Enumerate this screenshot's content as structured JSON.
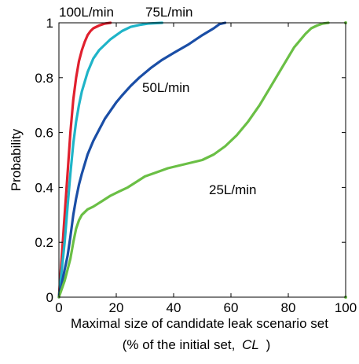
{
  "chart_data": {
    "type": "line",
    "title": "",
    "xlabel_line1": "Maximal size of candidate leak scenario set",
    "xlabel_line2_prefix": "(% of the initial set,",
    "xlabel_line2_symbol": "CL",
    "xlabel_line2_suffix": ")",
    "ylabel": "Probability",
    "xlim": [
      0,
      100
    ],
    "ylim": [
      0,
      1
    ],
    "x_ticks": [
      0,
      20,
      40,
      60,
      80,
      100
    ],
    "y_ticks": [
      0,
      0.2,
      0.4,
      0.6,
      0.8,
      1
    ],
    "x_tick_labels": [
      "0",
      "20",
      "40",
      "60",
      "80",
      "100"
    ],
    "y_tick_labels": [
      "0",
      "0.2",
      "0.4",
      "0.6",
      "0.8",
      "1"
    ],
    "grid": false,
    "legend": "none (series labeled directly on plot)",
    "series": [
      {
        "name": "100L/min",
        "color": "#e0202e",
        "x": [
          0,
          1,
          2,
          3,
          4,
          5,
          6,
          7,
          8,
          9,
          10,
          11,
          12,
          14,
          16,
          18
        ],
        "y": [
          0,
          0.15,
          0.3,
          0.45,
          0.6,
          0.72,
          0.8,
          0.86,
          0.9,
          0.93,
          0.955,
          0.97,
          0.98,
          0.99,
          0.997,
          1.0
        ]
      },
      {
        "name": "75L/min",
        "color": "#1fb4c8",
        "x": [
          0,
          2,
          3,
          4,
          5,
          6,
          7,
          8,
          10,
          12,
          14,
          16,
          18,
          20,
          22,
          25,
          28,
          31,
          36
        ],
        "y": [
          0,
          0.2,
          0.33,
          0.45,
          0.56,
          0.64,
          0.7,
          0.75,
          0.82,
          0.87,
          0.9,
          0.92,
          0.94,
          0.955,
          0.97,
          0.985,
          0.992,
          0.997,
          1.0
        ]
      },
      {
        "name": "50L/min",
        "color": "#1a4ea6",
        "x": [
          0,
          2,
          3,
          4,
          5,
          6,
          7,
          8,
          10,
          12,
          14,
          16,
          18,
          20,
          22,
          25,
          28,
          32,
          36,
          40,
          45,
          50,
          54,
          56,
          58
        ],
        "y": [
          0,
          0.1,
          0.15,
          0.22,
          0.3,
          0.36,
          0.41,
          0.45,
          0.52,
          0.57,
          0.61,
          0.65,
          0.68,
          0.71,
          0.735,
          0.77,
          0.8,
          0.835,
          0.865,
          0.89,
          0.92,
          0.955,
          0.98,
          0.995,
          1.0
        ]
      },
      {
        "name": "25L/min",
        "color": "#6abf45",
        "x": [
          0,
          2,
          4,
          5,
          6,
          7,
          8,
          10,
          12,
          15,
          18,
          21,
          24,
          27,
          30,
          34,
          38,
          42,
          46,
          50,
          54,
          58,
          62,
          66,
          70,
          74,
          78,
          82,
          86,
          88,
          90,
          92,
          94
        ],
        "y": [
          0,
          0.06,
          0.14,
          0.2,
          0.25,
          0.28,
          0.3,
          0.32,
          0.33,
          0.35,
          0.37,
          0.385,
          0.4,
          0.42,
          0.44,
          0.455,
          0.47,
          0.48,
          0.49,
          0.5,
          0.52,
          0.55,
          0.59,
          0.64,
          0.7,
          0.77,
          0.84,
          0.91,
          0.96,
          0.98,
          0.99,
          0.997,
          1.0
        ]
      }
    ],
    "annotations": [
      {
        "text": "100L/min",
        "series": "100L/min"
      },
      {
        "text": "75L/min",
        "series": "75L/min"
      },
      {
        "text": "50L/min",
        "series": "50L/min"
      },
      {
        "text": "25L/min",
        "series": "25L/min"
      }
    ]
  }
}
